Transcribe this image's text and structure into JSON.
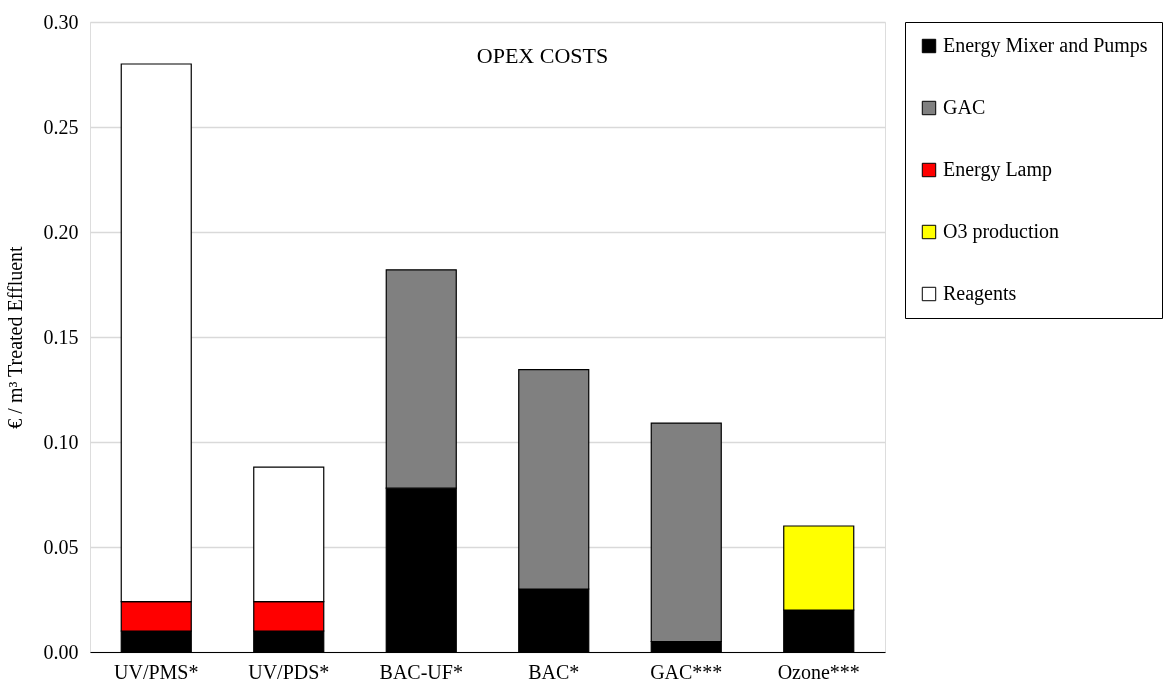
{
  "chart_data": {
    "type": "bar",
    "stacked": true,
    "title": "OPEX COSTS",
    "ylabel": "€ / m³  Treated Effluent",
    "categories": [
      "UV/PMS*",
      "UV/PDS*",
      "BAC-UF*",
      "BAC*",
      "GAC***",
      "Ozone***"
    ],
    "series": [
      {
        "name": "Energy Mixer and Pumps",
        "color": "#000000",
        "values": [
          0.01,
          0.01,
          0.078,
          0.03,
          0.005,
          0.02
        ]
      },
      {
        "name": "GAC",
        "color": "#808080",
        "values": [
          null,
          null,
          0.104,
          0.1045,
          0.104,
          null
        ]
      },
      {
        "name": "Energy Lamp",
        "color": "#ff0000",
        "values": [
          0.014,
          0.014,
          null,
          null,
          null,
          null
        ]
      },
      {
        "name": "O3 production",
        "color": "#ffff00",
        "values": [
          null,
          null,
          null,
          null,
          null,
          0.04
        ]
      },
      {
        "name": "Reagents",
        "color": "#ffffff",
        "values": [
          0.256,
          0.064,
          null,
          null,
          null,
          null
        ]
      }
    ],
    "ylim": [
      0,
      0.3
    ],
    "yticks": [
      {
        "value": 0,
        "label": "0.00"
      },
      {
        "value": 0.05,
        "label": "0.05"
      },
      {
        "value": 0.1,
        "label": "0.10"
      },
      {
        "value": 0.15,
        "label": "0.15"
      },
      {
        "value": 0.2,
        "label": "0.20"
      },
      {
        "value": 0.25,
        "label": "0.25"
      },
      {
        "value": 0.3,
        "label": "0.30"
      }
    ],
    "grid": "y",
    "legend": "right"
  }
}
